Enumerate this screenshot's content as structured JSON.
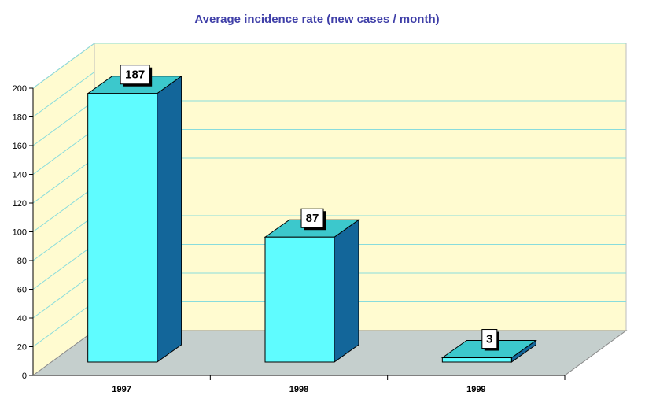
{
  "chart_data": {
    "type": "bar",
    "title": "Average incidence rate (new cases / month)",
    "categories": [
      "1997",
      "1998",
      "1999"
    ],
    "values": [
      187,
      87,
      3
    ],
    "data_labels": [
      "187",
      "87",
      "3"
    ],
    "ylim": [
      0,
      200
    ],
    "yticks": [
      "0",
      "20",
      "40",
      "60",
      "80",
      "100",
      "120",
      "140",
      "160",
      "180",
      "200"
    ],
    "grid": true,
    "style": "3d",
    "colors": {
      "bar_front": "#5ffcff",
      "bar_top": "#3cc8cc",
      "bar_side": "#13669a",
      "floor": "#c5cfcd",
      "wall": "#fffbd0",
      "gridline": "#88dcdc",
      "title": "#3f3fa8"
    }
  }
}
